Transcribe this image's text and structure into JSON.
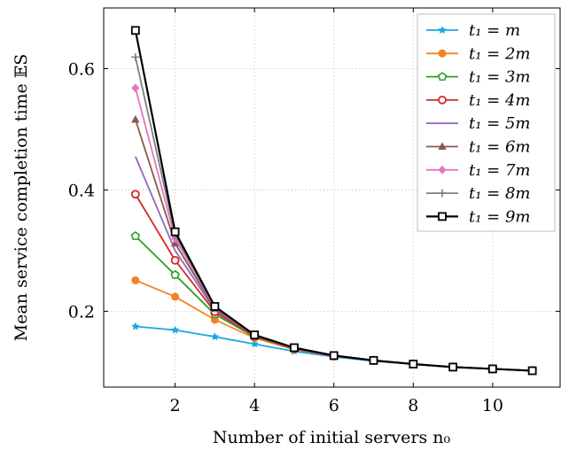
{
  "chart_data": {
    "type": "line",
    "xlabel": "Number of initial servers n₀",
    "ylabel": "Mean service completion time 𝔼S",
    "xlim": [
      0.2,
      11.7
    ],
    "ylim": [
      0.075,
      0.7
    ],
    "xticks": [
      2,
      4,
      6,
      8,
      10
    ],
    "yticks": [
      0.2,
      0.4,
      0.6
    ],
    "xtick_labels": [
      "2",
      "4",
      "6",
      "8",
      "10"
    ],
    "ytick_labels": [
      "0.2",
      "0.4",
      "0.6"
    ],
    "grid": true,
    "legend_position": "top-right",
    "x": [
      1,
      2,
      3,
      4,
      5,
      6,
      7,
      8,
      9,
      10,
      11
    ],
    "series": [
      {
        "name": "t₁ = m",
        "color": "#1ba7e0",
        "marker": "star",
        "values": [
          0.175,
          0.169,
          0.158,
          0.146,
          0.134,
          0.125,
          0.118,
          0.113,
          0.108,
          0.105,
          0.102
        ]
      },
      {
        "name": "t₁ = 2m",
        "color": "#f58220",
        "marker": "circle-filled",
        "values": [
          0.251,
          0.224,
          0.186,
          0.156,
          0.137,
          0.126,
          0.119,
          0.113,
          0.108,
          0.105,
          0.102
        ]
      },
      {
        "name": "t₁ = 3m",
        "color": "#2ca02c",
        "marker": "pentagon",
        "values": [
          0.324,
          0.26,
          0.195,
          0.158,
          0.138,
          0.126,
          0.119,
          0.113,
          0.108,
          0.105,
          0.102
        ]
      },
      {
        "name": "t₁ = 4m",
        "color": "#d62728",
        "marker": "circle-open",
        "values": [
          0.393,
          0.284,
          0.199,
          0.159,
          0.138,
          0.126,
          0.119,
          0.113,
          0.108,
          0.105,
          0.102
        ]
      },
      {
        "name": "t₁ = 5m",
        "color": "#9467bd",
        "marker": "none",
        "values": [
          0.455,
          0.3,
          0.202,
          0.16,
          0.139,
          0.126,
          0.119,
          0.113,
          0.108,
          0.105,
          0.102
        ]
      },
      {
        "name": "t₁ = 6m",
        "color": "#8c564b",
        "marker": "triangle",
        "values": [
          0.516,
          0.312,
          0.204,
          0.16,
          0.139,
          0.127,
          0.119,
          0.113,
          0.108,
          0.105,
          0.102
        ]
      },
      {
        "name": "t₁ = 7m",
        "color": "#e377c2",
        "marker": "diamond",
        "values": [
          0.568,
          0.32,
          0.206,
          0.161,
          0.139,
          0.127,
          0.119,
          0.113,
          0.108,
          0.105,
          0.102
        ]
      },
      {
        "name": "t₁ = 8m",
        "color": "#7f7f7f",
        "marker": "plus",
        "values": [
          0.619,
          0.326,
          0.207,
          0.161,
          0.139,
          0.127,
          0.119,
          0.113,
          0.108,
          0.105,
          0.102
        ]
      },
      {
        "name": "t₁ = 9m",
        "color": "#000000",
        "marker": "square",
        "values": [
          0.663,
          0.331,
          0.208,
          0.161,
          0.14,
          0.127,
          0.119,
          0.113,
          0.108,
          0.105,
          0.102
        ]
      }
    ]
  }
}
